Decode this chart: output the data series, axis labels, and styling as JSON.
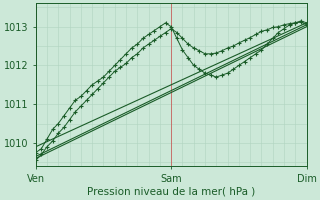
{
  "title": "Pression niveau de la mer( hPa )",
  "background_color": "#cce8d8",
  "grid_color_minor": "#b0d4c0",
  "grid_color_major": "#99c4aa",
  "line_color": "#1a5c28",
  "vline_color": "#cc4444",
  "text_color": "#1a5c28",
  "ylim": [
    1009.4,
    1013.6
  ],
  "xlim": [
    0,
    48
  ],
  "yticks": [
    1010,
    1011,
    1012,
    1013
  ],
  "xtick_positions": [
    0,
    24,
    48
  ],
  "xtick_labels": [
    "Ven",
    "Sam",
    "Dim"
  ],
  "vline_positions": [
    0,
    24,
    48
  ],
  "trend1_x": [
    0,
    48
  ],
  "trend1_y": [
    1009.6,
    1013.0
  ],
  "trend2_x": [
    0,
    48
  ],
  "trend2_y": [
    1009.9,
    1013.1
  ],
  "trend3_x": [
    0,
    48
  ],
  "trend3_y": [
    1009.65,
    1013.05
  ],
  "wave1_x": [
    0,
    1,
    2,
    3,
    4,
    5,
    6,
    7,
    8,
    9,
    10,
    11,
    12,
    13,
    14,
    15,
    16,
    17,
    18,
    19,
    20,
    21,
    22,
    23,
    24,
    25,
    26,
    27,
    28,
    29,
    30,
    31,
    32,
    33,
    34,
    35,
    36,
    37,
    38,
    39,
    40,
    41,
    42,
    43,
    44,
    45,
    46,
    47,
    48
  ],
  "wave1_y": [
    1009.75,
    1009.85,
    1010.1,
    1010.35,
    1010.5,
    1010.7,
    1010.9,
    1011.1,
    1011.2,
    1011.35,
    1011.5,
    1011.6,
    1011.7,
    1011.85,
    1012.0,
    1012.15,
    1012.3,
    1012.45,
    1012.55,
    1012.7,
    1012.8,
    1012.9,
    1013.0,
    1013.1,
    1013.0,
    1012.7,
    1012.4,
    1012.2,
    1012.0,
    1011.9,
    1011.8,
    1011.75,
    1011.7,
    1011.75,
    1011.8,
    1011.9,
    1012.0,
    1012.1,
    1012.2,
    1012.3,
    1012.4,
    1012.55,
    1012.7,
    1012.85,
    1012.95,
    1013.05,
    1013.1,
    1013.15,
    1013.1
  ],
  "wave2_x": [
    0,
    1,
    2,
    3,
    4,
    5,
    6,
    7,
    8,
    9,
    10,
    11,
    12,
    13,
    14,
    15,
    16,
    17,
    18,
    19,
    20,
    21,
    22,
    23,
    24,
    25,
    26,
    27,
    28,
    29,
    30,
    31,
    32,
    33,
    34,
    35,
    36,
    37,
    38,
    39,
    40,
    41,
    42,
    43,
    44,
    45,
    46,
    47,
    48
  ],
  "wave2_y": [
    1009.55,
    1009.7,
    1009.9,
    1010.05,
    1010.25,
    1010.4,
    1010.6,
    1010.8,
    1010.95,
    1011.1,
    1011.25,
    1011.4,
    1011.55,
    1011.7,
    1011.85,
    1011.95,
    1012.05,
    1012.2,
    1012.3,
    1012.45,
    1012.55,
    1012.65,
    1012.75,
    1012.85,
    1012.95,
    1012.85,
    1012.7,
    1012.55,
    1012.45,
    1012.38,
    1012.3,
    1012.3,
    1012.32,
    1012.38,
    1012.45,
    1012.5,
    1012.58,
    1012.65,
    1012.72,
    1012.8,
    1012.88,
    1012.92,
    1012.98,
    1013.0,
    1013.05,
    1013.08,
    1013.1,
    1013.12,
    1013.05
  ]
}
